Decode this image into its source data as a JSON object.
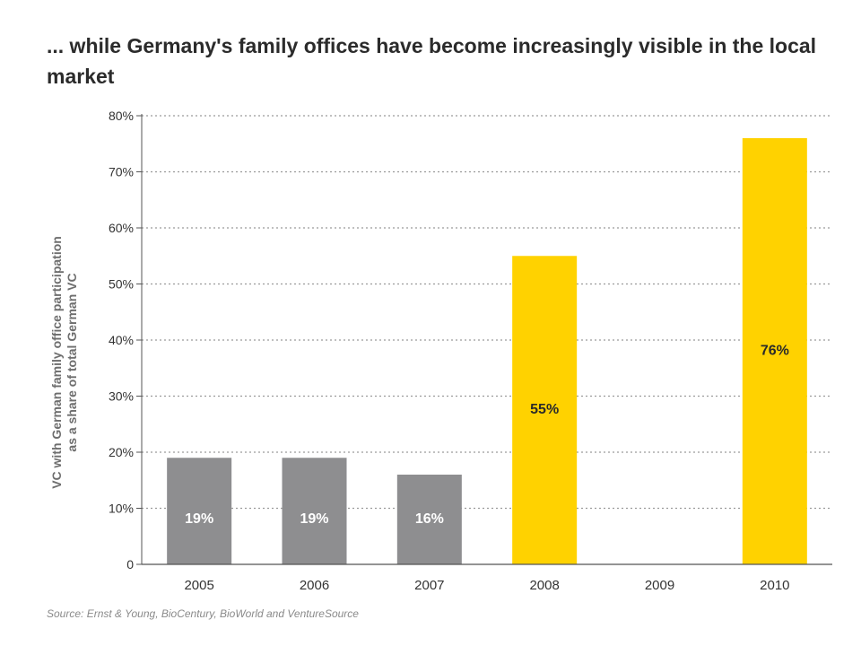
{
  "title": "... while Germany's family offices have become increasingly visible in the local market",
  "source": "Source: Ernst & Young, BioCentury, BioWorld and VentureSource",
  "colors": {
    "gray_bar": "#8e8e90",
    "highlight_bar": "#ffd200",
    "grid": "#9a9a9a",
    "axis": "#555555"
  },
  "chart_data": {
    "type": "bar",
    "categories": [
      "2005",
      "2006",
      "2007",
      "2008",
      "2009",
      "2010"
    ],
    "values": [
      19,
      19,
      16,
      55,
      null,
      76
    ],
    "data_labels": [
      "19%",
      "19%",
      "16%",
      "55%",
      "",
      "76%"
    ],
    "bar_colors": [
      "gray",
      "gray",
      "gray",
      "highlight",
      null,
      "highlight"
    ],
    "ylabel_lines": [
      "VC with German family office participation",
      "as a share of total German VC"
    ],
    "xlabel": "",
    "ylim": [
      0,
      80
    ],
    "yticks": [
      0,
      10,
      20,
      30,
      40,
      50,
      60,
      70,
      80
    ],
    "ytick_labels": [
      "0",
      "10%",
      "20%",
      "30%",
      "40%",
      "50%",
      "60%",
      "70%",
      "80%"
    ],
    "grid": true,
    "grid_style": "dotted",
    "legend": "none"
  }
}
